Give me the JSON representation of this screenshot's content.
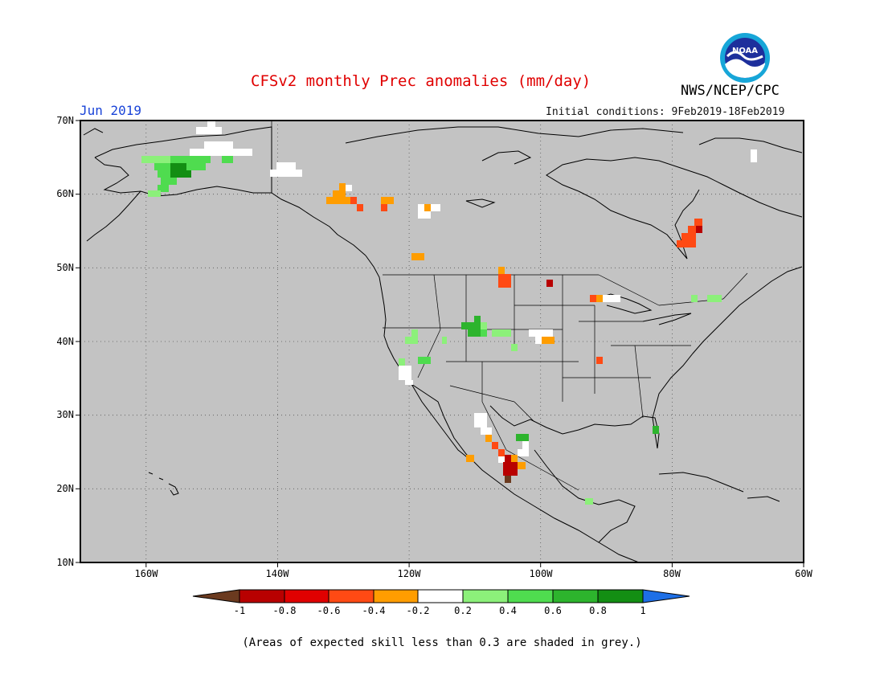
{
  "title": "CFSv2 monthly Prec anomalies (mm/day)",
  "org": "NWS/NCEP/CPC",
  "logo_text": "NOAA",
  "month": "Jun 2019",
  "initial_conditions": "Initial conditions: 9Feb2019-18Feb2019",
  "lat_labels": [
    "70N",
    "60N",
    "50N",
    "40N",
    "30N",
    "20N",
    "10N"
  ],
  "lon_labels": [
    "160W",
    "140W",
    "120W",
    "100W",
    "80W",
    "60W"
  ],
  "colorbar": {
    "labels": [
      "-1",
      "-0.8",
      "-0.6",
      "-0.4",
      "-0.2",
      "0.2",
      "0.4",
      "0.6",
      "0.8",
      "1"
    ],
    "colors": [
      "#6b3a1f",
      "#b80000",
      "#e00000",
      "#ff4a14",
      "#ff9d00",
      "#ffffff",
      "#8cf07a",
      "#4fdc4f",
      "#2db42d",
      "#138e13",
      "#1e6fe6"
    ]
  },
  "footnote": "(Areas of expected skill less than 0.3 are shaded in grey.)",
  "colors": {
    "ocean_land": "#c3c3c3",
    "title": "#e00000",
    "month": "#1a44d8"
  }
}
